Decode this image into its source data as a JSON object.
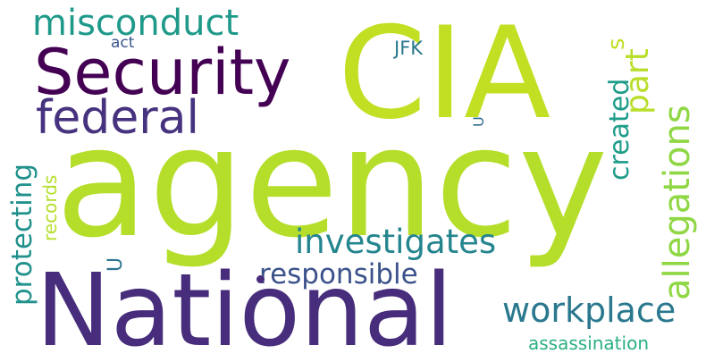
{
  "cloud": {
    "background": "#ffffff",
    "words": {
      "agency": {
        "text": "agency",
        "color": "#b5de2b"
      },
      "cia": {
        "text": "CIA",
        "color": "#c2df23"
      },
      "national": {
        "text": "National",
        "color": "#472d7b"
      },
      "security": {
        "text": "Security",
        "color": "#440154"
      },
      "federal": {
        "text": "federal",
        "color": "#46327e"
      },
      "misconduct": {
        "text": "misconduct",
        "color": "#1f9a8a"
      },
      "investigates": {
        "text": "investigates",
        "color": "#25858e"
      },
      "allegations": {
        "text": "allegations",
        "color": "#8fd744"
      },
      "workplace": {
        "text": "workplace",
        "color": "#2a788e"
      },
      "responsible": {
        "text": "responsible",
        "color": "#3b528b"
      },
      "protecting": {
        "text": "protecting",
        "color": "#21918c"
      },
      "part": {
        "text": "part",
        "color": "#b8de29"
      },
      "created": {
        "text": "created",
        "color": "#1e9c89"
      },
      "records": {
        "text": "records",
        "color": "#b5de2b"
      },
      "assassination": {
        "text": "assassination",
        "color": "#2ab07f"
      },
      "jfk": {
        "text": "JFK",
        "color": "#2a788e"
      },
      "act": {
        "text": "act",
        "color": "#39568c"
      },
      "s": {
        "text": "s",
        "color": "#c0df25"
      },
      "u1": {
        "text": "U",
        "color": "#2c728e"
      },
      "u2": {
        "text": "U",
        "color": "#2f6b8e"
      }
    },
    "dot_color": "#472d7b"
  }
}
